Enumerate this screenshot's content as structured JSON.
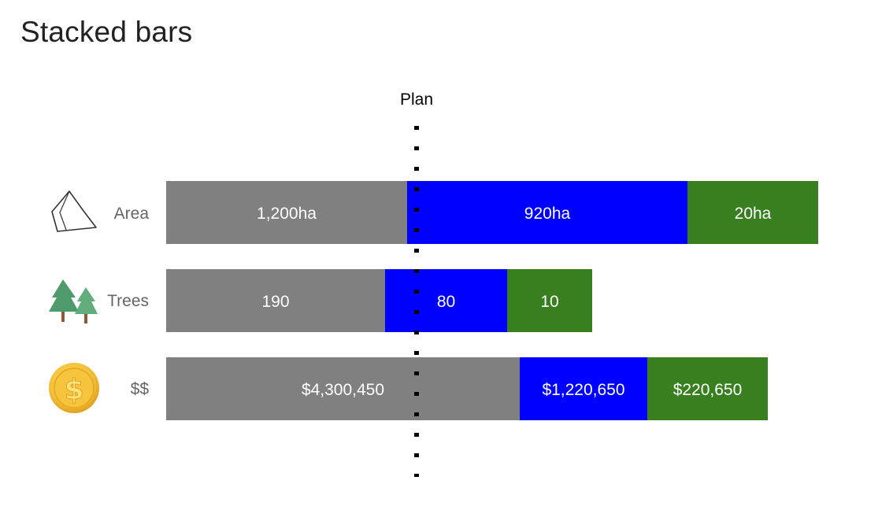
{
  "page": {
    "title": "Stacked bars"
  },
  "chart_data": {
    "type": "bar",
    "orientation": "horizontal",
    "stacked": true,
    "title": "",
    "xlabel": "",
    "ylabel": "",
    "grid": false,
    "legend": "none",
    "categories": [
      {
        "key": "area",
        "label": "Area",
        "icon": "area-polygon-icon"
      },
      {
        "key": "trees",
        "label": "Trees",
        "icon": "pine-trees-icon"
      },
      {
        "key": "money",
        "label": "$$",
        "icon": "dollar-coin-icon"
      }
    ],
    "segment_colors": [
      "#808080",
      "#0000ff",
      "#38801f"
    ],
    "rows": [
      {
        "category": "Area",
        "scale_max": 1300,
        "segments": [
          {
            "value": 1200,
            "label": "1,200ha"
          },
          {
            "value": 920,
            "label": "920ha"
          },
          {
            "value": 20,
            "label": "20ha"
          }
        ]
      },
      {
        "category": "Trees",
        "scale_max": 1300,
        "segments": [
          {
            "value": 190,
            "label": "190"
          },
          {
            "value": 80,
            "label": "80"
          },
          {
            "value": 10,
            "label": "10"
          }
        ]
      },
      {
        "category": "$$",
        "scale_max": 1300,
        "segments": [
          {
            "value": 4300450,
            "label": "$4,300,450"
          },
          {
            "value": 1220650,
            "label": "$1,220,650"
          },
          {
            "value": 220650,
            "label": "$220,650"
          }
        ]
      }
    ],
    "reference_line": {
      "label": "Plan",
      "style": "dotted"
    }
  }
}
